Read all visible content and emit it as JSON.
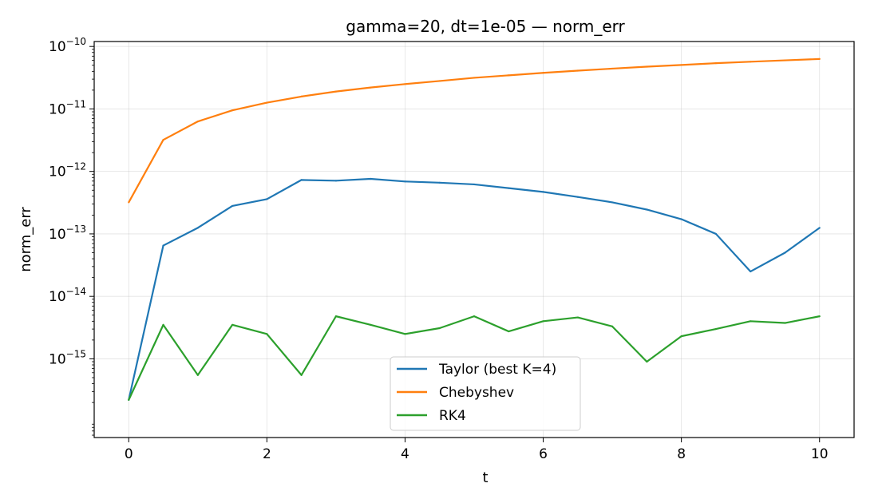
{
  "chart_data": {
    "type": "line",
    "title": "gamma=20, dt=1e-05 — norm_err",
    "xlabel": "t",
    "ylabel": "norm_err",
    "xlim": [
      -0.5,
      10.5
    ],
    "ylim": [
      5.5e-17,
      1.2e-10
    ],
    "yscale": "log",
    "xticks": [
      0,
      2,
      4,
      6,
      8,
      10
    ],
    "xtick_labels": [
      "0",
      "2",
      "4",
      "6",
      "8",
      "10"
    ],
    "yticks": [
      1e-15,
      1e-14,
      1e-13,
      1e-12,
      1e-11,
      1e-10
    ],
    "ytick_labels": [
      {
        "base": "10",
        "exp": "−15"
      },
      {
        "base": "10",
        "exp": "−14"
      },
      {
        "base": "10",
        "exp": "−13"
      },
      {
        "base": "10",
        "exp": "−12"
      },
      {
        "base": "10",
        "exp": "−11"
      },
      {
        "base": "10",
        "exp": "−10"
      }
    ],
    "grid": true,
    "legend_position": "lower-center",
    "x": [
      0,
      0.5,
      1,
      1.5,
      2,
      2.5,
      3,
      3.5,
      4,
      4.5,
      5,
      5.5,
      6,
      6.5,
      7,
      7.5,
      8,
      8.5,
      9,
      9.5,
      10
    ],
    "series": [
      {
        "name": "Taylor (best K=4)",
        "color": "#1f77b4",
        "values": [
          2.2e-16,
          6.5e-14,
          1.25e-13,
          2.8e-13,
          3.6e-13,
          7.3e-13,
          7.1e-13,
          7.6e-13,
          6.9e-13,
          6.6e-13,
          6.2e-13,
          5.4e-13,
          4.7e-13,
          3.9e-13,
          3.2e-13,
          2.45e-13,
          1.72e-13,
          1e-13,
          2.5e-14,
          5e-14,
          1.25e-13
        ]
      },
      {
        "name": "Chebyshev",
        "color": "#ff7f0e",
        "values": [
          3.2e-13,
          3.2e-12,
          6.3e-12,
          9.5e-12,
          1.26e-11,
          1.58e-11,
          1.9e-11,
          2.2e-11,
          2.5e-11,
          2.8e-11,
          3.15e-11,
          3.45e-11,
          3.78e-11,
          4.1e-11,
          4.42e-11,
          4.75e-11,
          5.05e-11,
          5.4e-11,
          5.7e-11,
          6e-11,
          6.3e-11
        ]
      },
      {
        "name": "RK4",
        "color": "#2ca02c",
        "values": [
          2.2e-16,
          3.5e-15,
          5.5e-16,
          3.5e-15,
          2.5e-15,
          5.5e-16,
          4.8e-15,
          3.5e-15,
          2.5e-15,
          3.1e-15,
          4.8e-15,
          2.75e-15,
          4e-15,
          4.6e-15,
          3.3e-15,
          9e-16,
          2.3e-15,
          3e-15,
          4e-15,
          3.75e-15,
          4.8e-15
        ]
      }
    ]
  }
}
